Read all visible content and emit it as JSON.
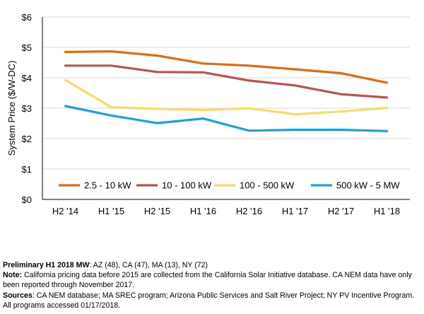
{
  "chart_data": {
    "type": "line",
    "title": "",
    "xlabel": "",
    "ylabel": "System Price ($/W-DC)",
    "ylim": [
      0,
      6
    ],
    "y_ticks": [
      0,
      1,
      2,
      3,
      4,
      5,
      6
    ],
    "y_tick_labels": [
      "$0",
      "$1",
      "$2",
      "$3",
      "$4",
      "$5",
      "$6"
    ],
    "grid": true,
    "legend_position": "bottom",
    "categories": [
      "H2 '14",
      "H1 '15",
      "H2 '15",
      "H1 '16",
      "H2 '16",
      "H1 '17",
      "H2 '17",
      "H1 '18"
    ],
    "series": [
      {
        "name": "2.5 - 10 kW",
        "color": "#E36C0A",
        "values": [
          4.85,
          4.87,
          4.73,
          4.47,
          4.4,
          4.28,
          4.15,
          3.84
        ]
      },
      {
        "name": "10 - 100 kW",
        "color": "#C0504D",
        "values": [
          4.4,
          4.4,
          4.19,
          4.18,
          3.91,
          3.75,
          3.46,
          3.35
        ]
      },
      {
        "name": "100 - 500 kW",
        "color": "#FFD966",
        "values": [
          3.93,
          3.03,
          2.98,
          2.94,
          3.0,
          2.8,
          2.89,
          3.01
        ]
      },
      {
        "name": "500 kW - 5 MW",
        "color": "#1BA1E2",
        "values": [
          3.07,
          2.76,
          2.51,
          2.66,
          2.26,
          2.29,
          2.29,
          2.25
        ]
      }
    ]
  },
  "notes": {
    "line1_label": "Preliminary H1 2018 MW",
    "line1_text": ": AZ (48), CA (47), MA (13), NY (72)",
    "line2_label": "Note:",
    "line2_text": " California pricing data before 2015 are collected from the California Solar Initiative database. CA NEM data have only been reported through November 2017.",
    "line3_label": "Sources",
    "line3_text": ": CA NEM database; MA SREC program; Arizona Public Services and Salt River Project; NY PV Incentive Program. All programs accessed 01/17/2018."
  }
}
